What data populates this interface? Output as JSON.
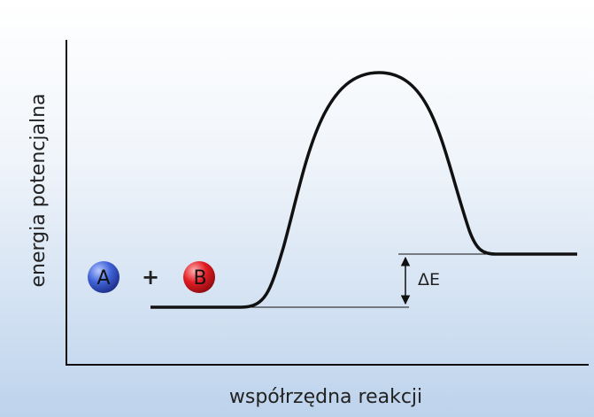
{
  "axes": {
    "y_label": "energia potencjalna",
    "x_label": "współrzędna reakcji"
  },
  "reactants": {
    "first": "A",
    "operator": "+",
    "second": "B"
  },
  "delta_label": "ΔE"
}
